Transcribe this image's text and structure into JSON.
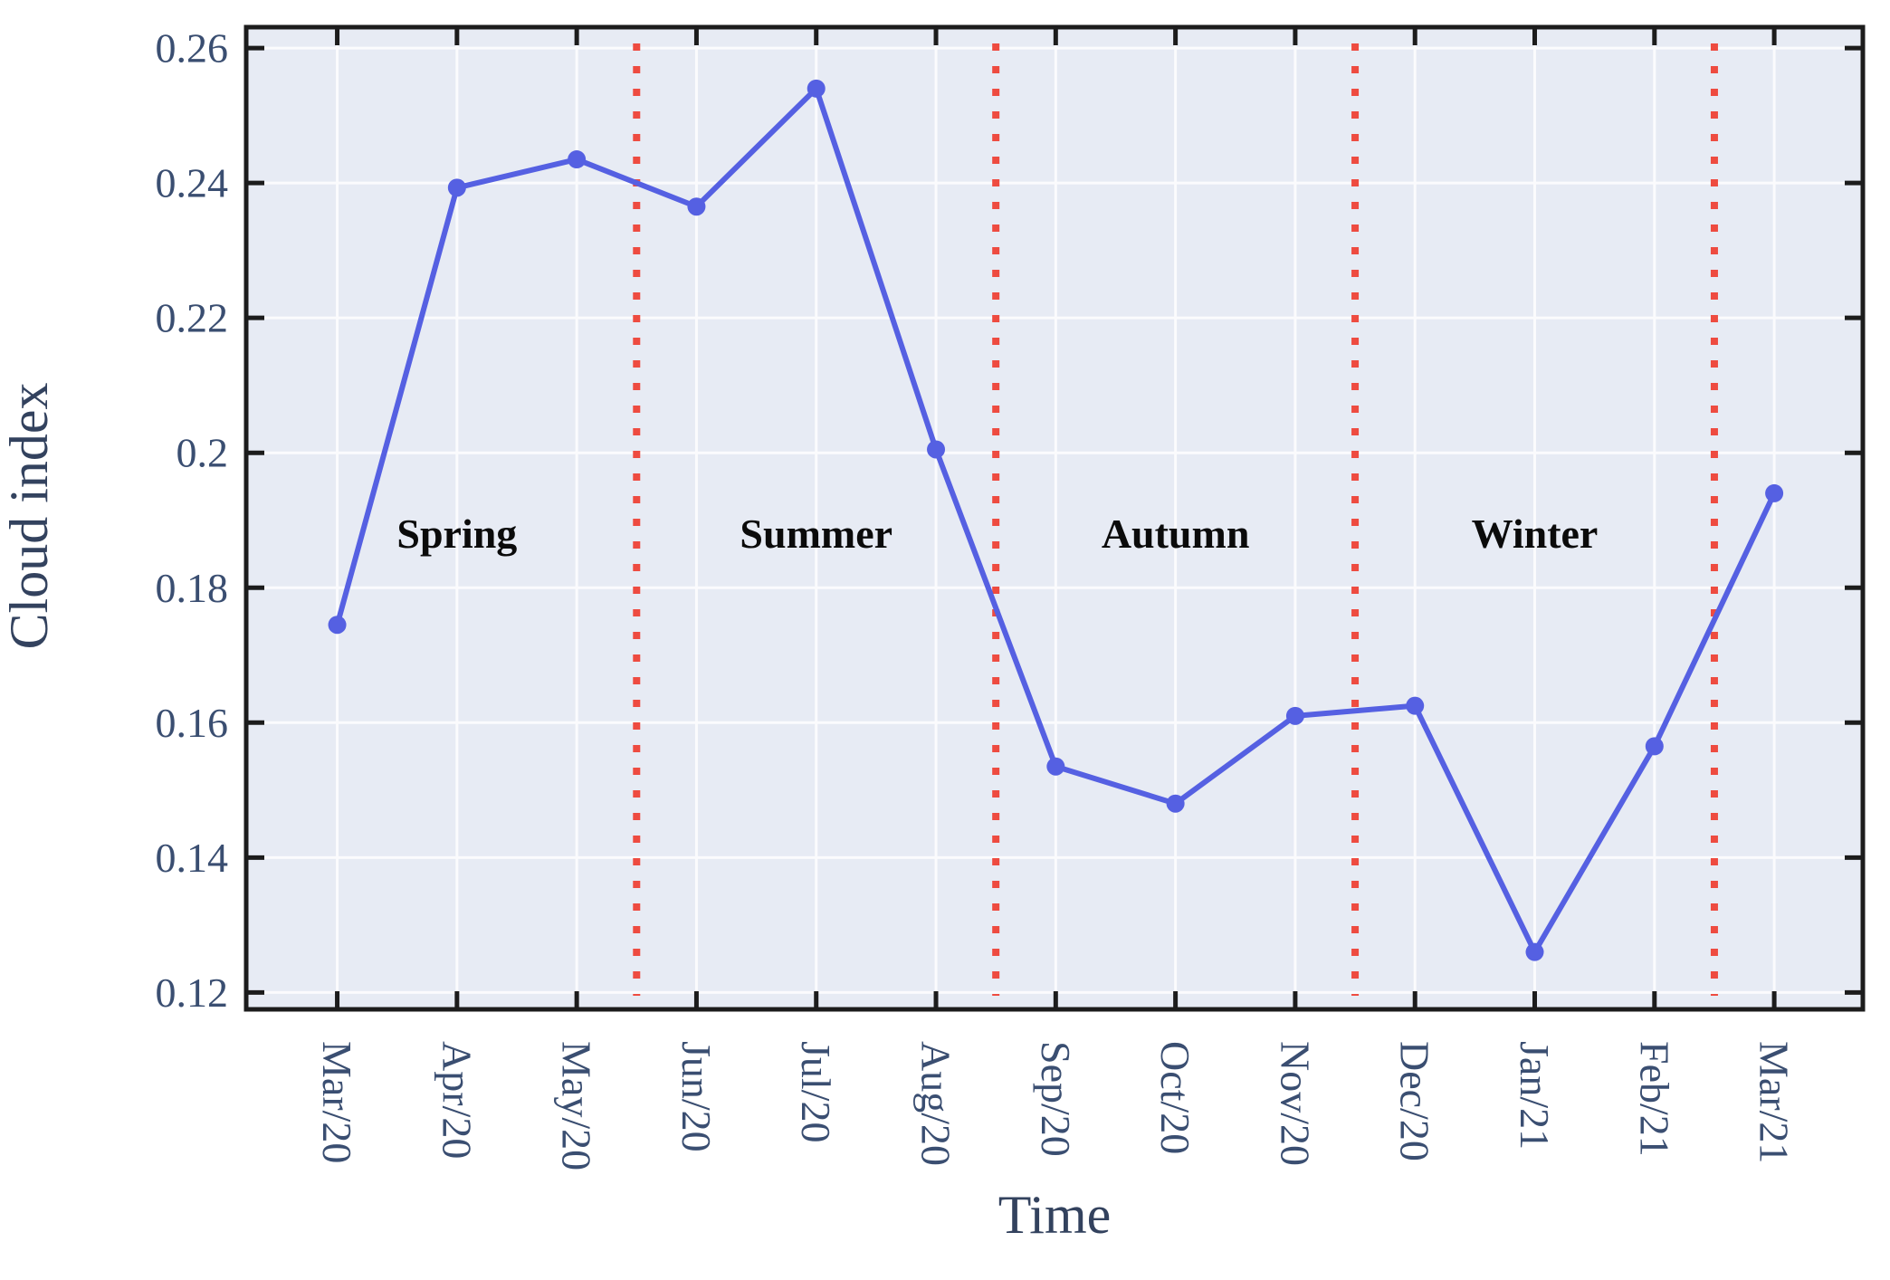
{
  "chart_data": {
    "type": "line",
    "title": "",
    "xlabel": "Time",
    "ylabel": "Cloud index",
    "x": [
      "Mar/20",
      "Apr/20",
      "May/20",
      "Jun/20",
      "Jul/20",
      "Aug/20",
      "Sep/20",
      "Oct/20",
      "Nov/20",
      "Dec/20",
      "Jan/21",
      "Feb/21",
      "Mar/21"
    ],
    "series": [
      {
        "name": "Cloud index",
        "values": [
          0.1745,
          0.2393,
          0.2435,
          0.2365,
          0.254,
          0.2005,
          0.1535,
          0.148,
          0.161,
          0.1625,
          0.126,
          0.1565,
          0.194
        ],
        "color": "#5560e2",
        "marker": "circle"
      }
    ],
    "xlim": [
      -0.76,
      12.74
    ],
    "ylim": [
      0.1175,
      0.2631
    ],
    "yticks": [
      0.12,
      0.14,
      0.16,
      0.18,
      0.2,
      0.22,
      0.24,
      0.26
    ],
    "ytick_labels": [
      "0.12",
      "0.14",
      "0.16",
      "0.18",
      "0.2",
      "0.22",
      "0.24",
      "0.26"
    ],
    "grid": true,
    "legend": "none",
    "annotations": [
      {
        "label": "Spring",
        "x": 1,
        "y": 0.188
      },
      {
        "label": "Summer",
        "x": 4,
        "y": 0.188
      },
      {
        "label": "Autumn",
        "x": 7,
        "y": 0.188
      },
      {
        "label": "Winter",
        "x": 10,
        "y": 0.188
      }
    ],
    "season_boundaries_x": [
      2.5,
      5.5,
      8.5,
      11.5
    ],
    "colors": {
      "line": "#5560e2",
      "boundary": "#ee4b40",
      "plot_bg": "#e7ebf4",
      "grid": "#fbfbfd",
      "spine": "#1c1c1c",
      "tick_label": "#3a4e71",
      "axis_label": "#33425e",
      "annotation": "#0b0b0b",
      "page_bg": "#ffffff"
    }
  }
}
